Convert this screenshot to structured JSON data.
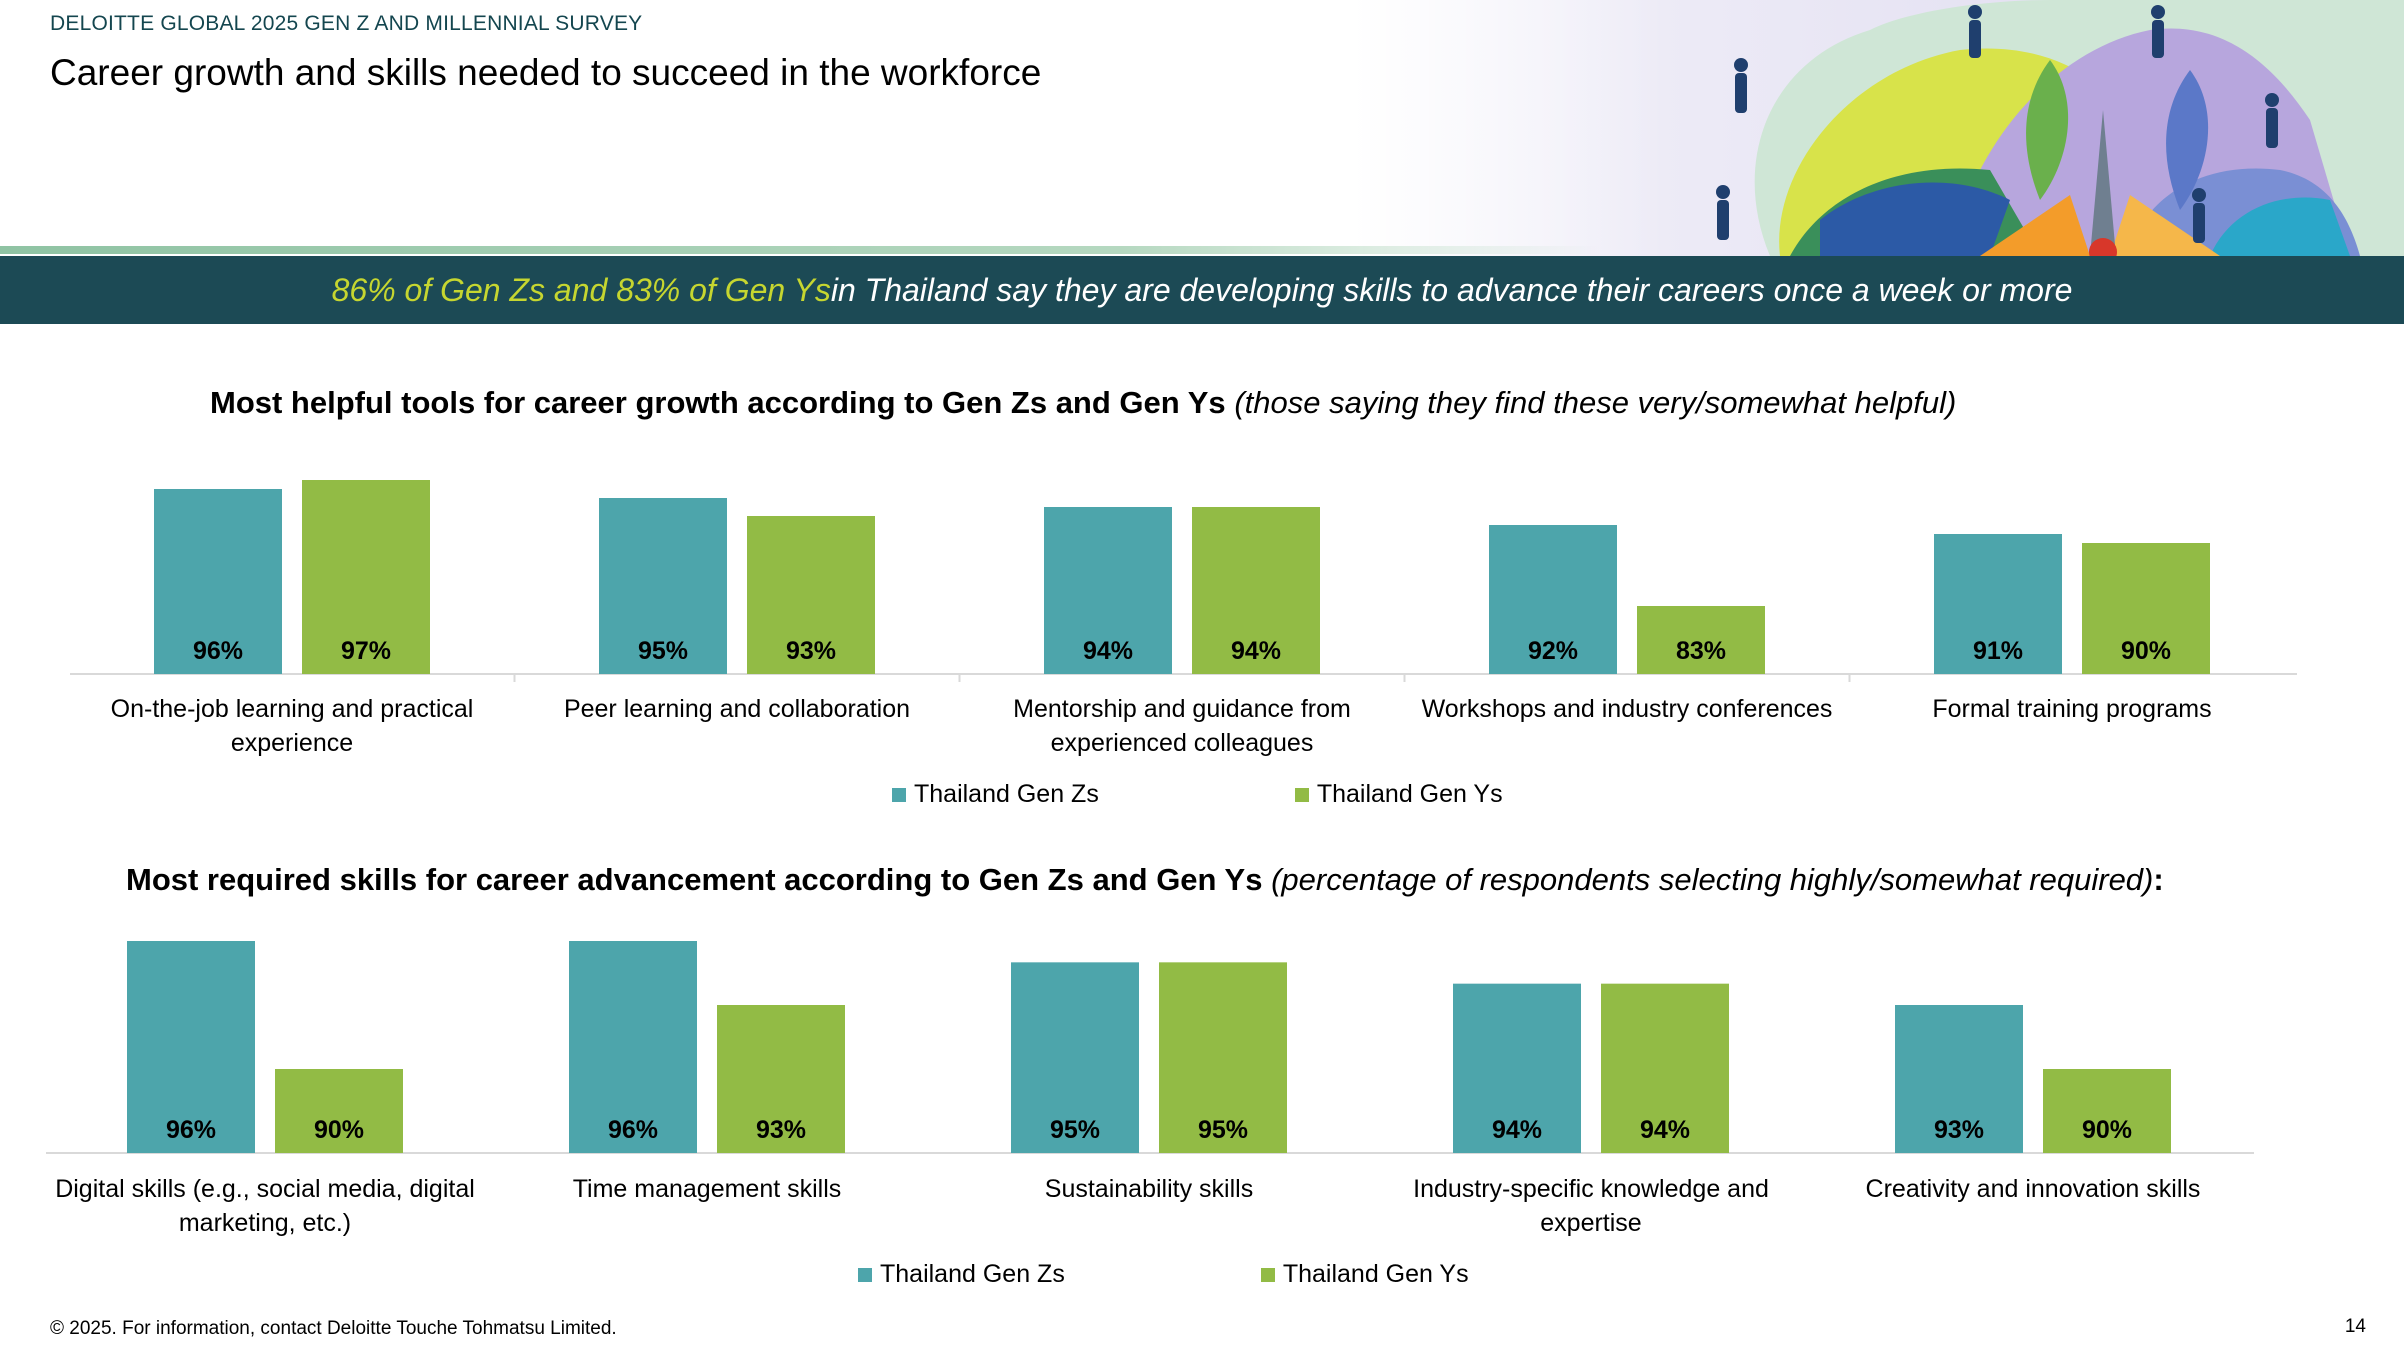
{
  "header": {
    "survey_label": "DELOITTE GLOBAL 2025 GEN Z AND MILLENNIAL SURVEY",
    "title": "Career growth and skills needed to succeed in the workforce"
  },
  "banner": {
    "highlight": "86% of Gen Zs and 83% of Gen Ys",
    "rest": " in Thailand say they are developing skills to advance their careers once a week or more"
  },
  "colors": {
    "gen_z": "#4da5ab",
    "gen_y": "#92bb45",
    "banner": "#1c4a55",
    "highlight": "#c6d630"
  },
  "chart_data": [
    {
      "type": "bar",
      "title": "Most helpful tools for career growth according to Gen Zs and Gen Ys",
      "title_note": "(those saying they find these very/somewhat helpful)",
      "categories": [
        "On-the-job learning and practical experience",
        "Peer learning and collaboration",
        "Mentorship and guidance from experienced colleagues",
        "Workshops and industry conferences",
        "Formal training programs"
      ],
      "series": [
        {
          "name": "Thailand Gen Zs",
          "values": [
            96,
            95,
            94,
            92,
            91
          ]
        },
        {
          "name": "Thailand Gen Ys",
          "values": [
            97,
            93,
            94,
            83,
            90
          ]
        }
      ],
      "value_format": "%",
      "legend": "bottom-center",
      "grid": false
    },
    {
      "type": "bar",
      "title": "Most required skills for career advancement according to Gen Zs and Gen Ys",
      "title_note": "(percentage of respondents selecting highly/somewhat required)",
      "title_suffix": ":",
      "categories": [
        "Digital skills (e.g., social media, digital marketing, etc.)",
        "Time management skills",
        "Sustainability skills",
        "Industry-specific knowledge and expertise",
        "Creativity and innovation skills"
      ],
      "series": [
        {
          "name": "Thailand Gen Zs",
          "values": [
            96,
            96,
            95,
            94,
            93
          ]
        },
        {
          "name": "Thailand Gen Ys",
          "values": [
            90,
            93,
            95,
            94,
            90
          ]
        }
      ],
      "value_format": "%",
      "legend": "bottom-center",
      "grid": false
    }
  ],
  "footer": {
    "copyright": "© 2025. For information, contact Deloitte Touche Tohmatsu Limited.",
    "page_number": "14"
  }
}
